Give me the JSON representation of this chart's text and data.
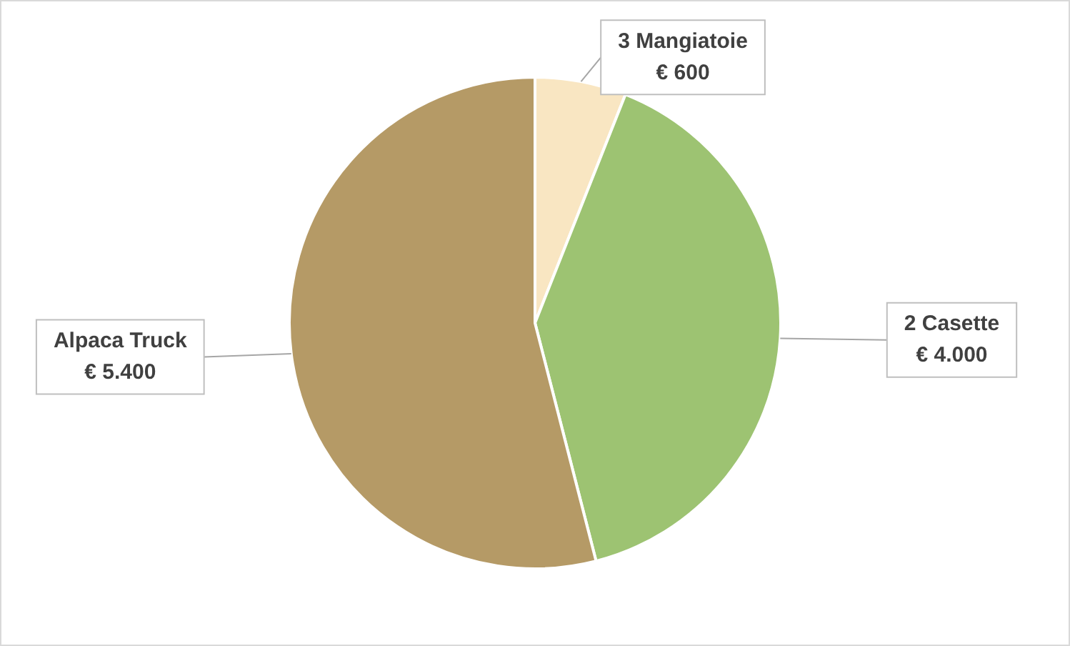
{
  "chart_data": {
    "type": "pie",
    "categories": [
      "3 Mangiatoie",
      "2 Casette",
      "Alpaca Truck"
    ],
    "values": [
      600,
      4000,
      5400
    ],
    "colors": [
      "#f9e6c2",
      "#9dc372",
      "#b59a66"
    ],
    "value_labels": [
      "€ 600",
      "€ 4.000",
      "€ 5.400"
    ],
    "legend": false
  }
}
